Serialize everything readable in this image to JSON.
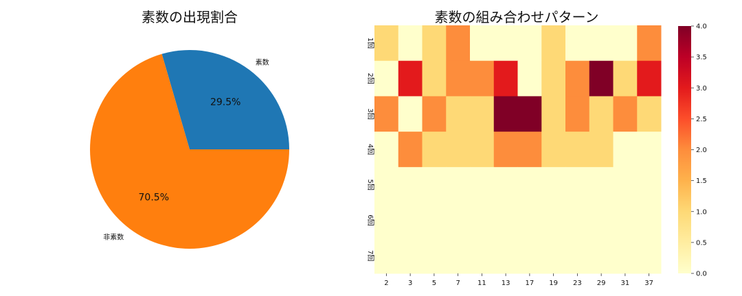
{
  "chart_data": [
    {
      "type": "pie",
      "title": "素数の出現割合",
      "labels": [
        "素数",
        "非素数"
      ],
      "values": [
        29.5,
        70.5
      ],
      "pct_labels": [
        "29.5%",
        "70.5%"
      ],
      "colors": [
        "#1f77b4",
        "#ff7f0e"
      ]
    },
    {
      "type": "heatmap",
      "title": "素数の組み合わせパターン",
      "x_categories": [
        "2",
        "3",
        "5",
        "7",
        "11",
        "13",
        "17",
        "19",
        "23",
        "29",
        "31",
        "37"
      ],
      "y_categories": [
        "1回",
        "2回",
        "3回",
        "4回",
        "5回",
        "6回",
        "7回"
      ],
      "values": [
        [
          1,
          0,
          1,
          2,
          0,
          0,
          0,
          1,
          0,
          0,
          0,
          2
        ],
        [
          0,
          3,
          1,
          2,
          2,
          3,
          0,
          1,
          2,
          4,
          1,
          3
        ],
        [
          2,
          0,
          2,
          1,
          1,
          4,
          4,
          1,
          2,
          1,
          2,
          1
        ],
        [
          0,
          2,
          1,
          1,
          1,
          2,
          2,
          1,
          1,
          1,
          0,
          0
        ],
        [
          0,
          0,
          0,
          0,
          0,
          0,
          0,
          0,
          0,
          0,
          0,
          0
        ],
        [
          0,
          0,
          0,
          0,
          0,
          0,
          0,
          0,
          0,
          0,
          0,
          0
        ],
        [
          0,
          0,
          0,
          0,
          0,
          0,
          0,
          0,
          0,
          0,
          0,
          0
        ]
      ],
      "colormap": "YlOrRd",
      "vmin": 0,
      "vmax": 4,
      "colorbar_ticks": [
        "0.0",
        "0.5",
        "1.0",
        "1.5",
        "2.0",
        "2.5",
        "3.0",
        "3.5",
        "4.0"
      ]
    }
  ]
}
